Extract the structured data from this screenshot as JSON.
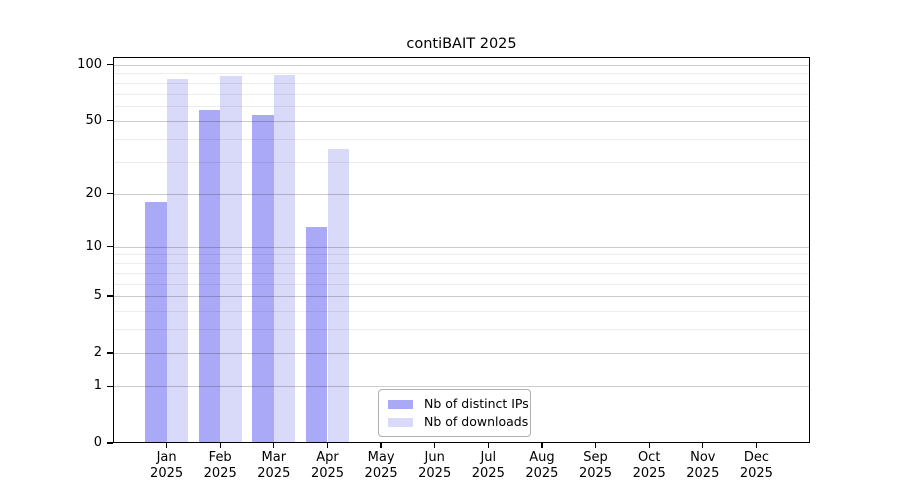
{
  "chart_data": {
    "type": "bar",
    "title": "contiBAIT 2025",
    "categories": [
      "Jan 2025",
      "Feb 2025",
      "Mar 2025",
      "Apr 2025",
      "May 2025",
      "Jun 2025",
      "Jul 2025",
      "Aug 2025",
      "Sep 2025",
      "Oct 2025",
      "Nov 2025",
      "Dec 2025"
    ],
    "series": [
      {
        "name": "Nb of distinct IPs",
        "slug": "distinct-ips",
        "color": "#a9a9f8",
        "values": [
          18,
          57,
          54,
          13,
          null,
          null,
          null,
          null,
          null,
          null,
          null,
          null
        ]
      },
      {
        "name": "Nb of downloads",
        "slug": "downloads",
        "color": "#d9d9f9",
        "values": [
          84,
          87,
          88,
          35,
          null,
          null,
          null,
          null,
          null,
          null,
          null,
          null
        ]
      }
    ],
    "xlabel": "",
    "ylabel": "",
    "y_scale": "log10(1+x)",
    "ylim": [
      0,
      110
    ],
    "y_ticks": [
      100,
      50,
      20,
      10,
      5,
      2,
      1,
      0
    ],
    "y_minor_gridlines": [
      90,
      80,
      70,
      60,
      40,
      30,
      9,
      8,
      7,
      6,
      4,
      3
    ],
    "grid": "on",
    "legend_position": "lower center",
    "bar_group_width_fraction": 0.8
  },
  "colors": {
    "major_grid": "#cccccc",
    "minor_grid": "#ececec",
    "axis": "#000000",
    "background": "#ffffff"
  }
}
